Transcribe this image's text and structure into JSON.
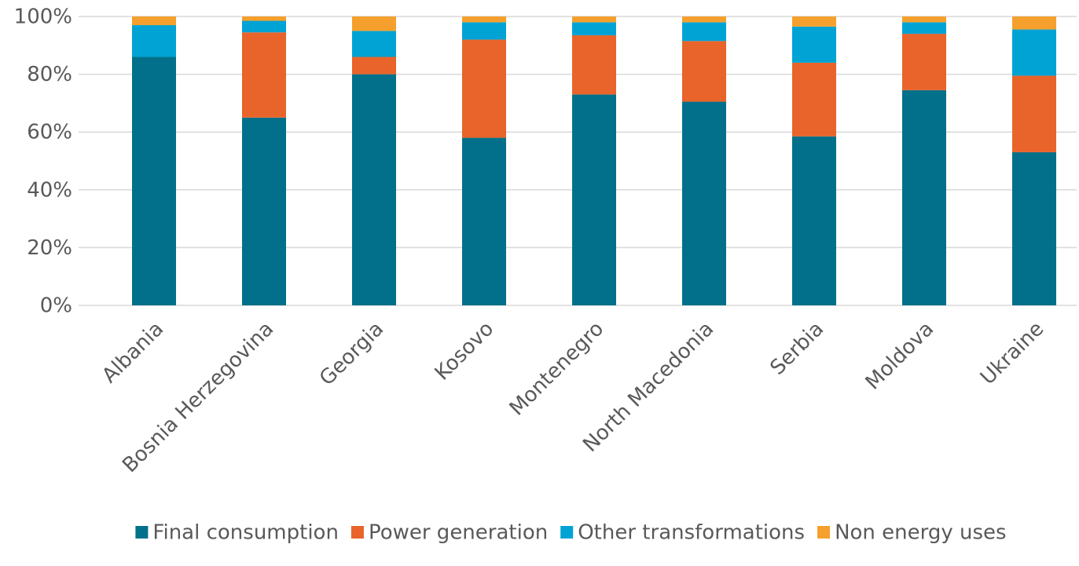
{
  "chart_data": {
    "type": "stacked_bar",
    "categories": [
      "Albania",
      "Bosnia Herzegovina",
      "Georgia",
      "Kosovo",
      "Montenegro",
      "North Macedonia",
      "Serbia",
      "Moldova",
      "Ukraine"
    ],
    "series": [
      {
        "name": "Final consumption",
        "color": "#02708a",
        "values": [
          86,
          65,
          80,
          58,
          73,
          70.5,
          58.5,
          74.5,
          53
        ]
      },
      {
        "name": "Power generation",
        "color": "#e8642a",
        "values": [
          0,
          29.5,
          6,
          34,
          20.5,
          21,
          25.5,
          19.5,
          26.5
        ]
      },
      {
        "name": "Other transformations",
        "color": "#01a3d4",
        "values": [
          11,
          4,
          9,
          6,
          4.5,
          6.5,
          12.5,
          4,
          16
        ]
      },
      {
        "name": "Non energy uses",
        "color": "#f5a02c",
        "values": [
          3,
          1.5,
          5,
          2,
          2,
          2,
          3.5,
          2,
          4.5
        ]
      }
    ],
    "ylim": [
      0,
      100
    ],
    "yticks": [
      {
        "value": 0,
        "label": "0%"
      },
      {
        "value": 20,
        "label": "20%"
      },
      {
        "value": 40,
        "label": "40%"
      },
      {
        "value": 60,
        "label": "60%"
      },
      {
        "value": 80,
        "label": "80%"
      },
      {
        "value": 100,
        "label": "100%"
      }
    ],
    "grid": true,
    "legend": "bottom"
  }
}
